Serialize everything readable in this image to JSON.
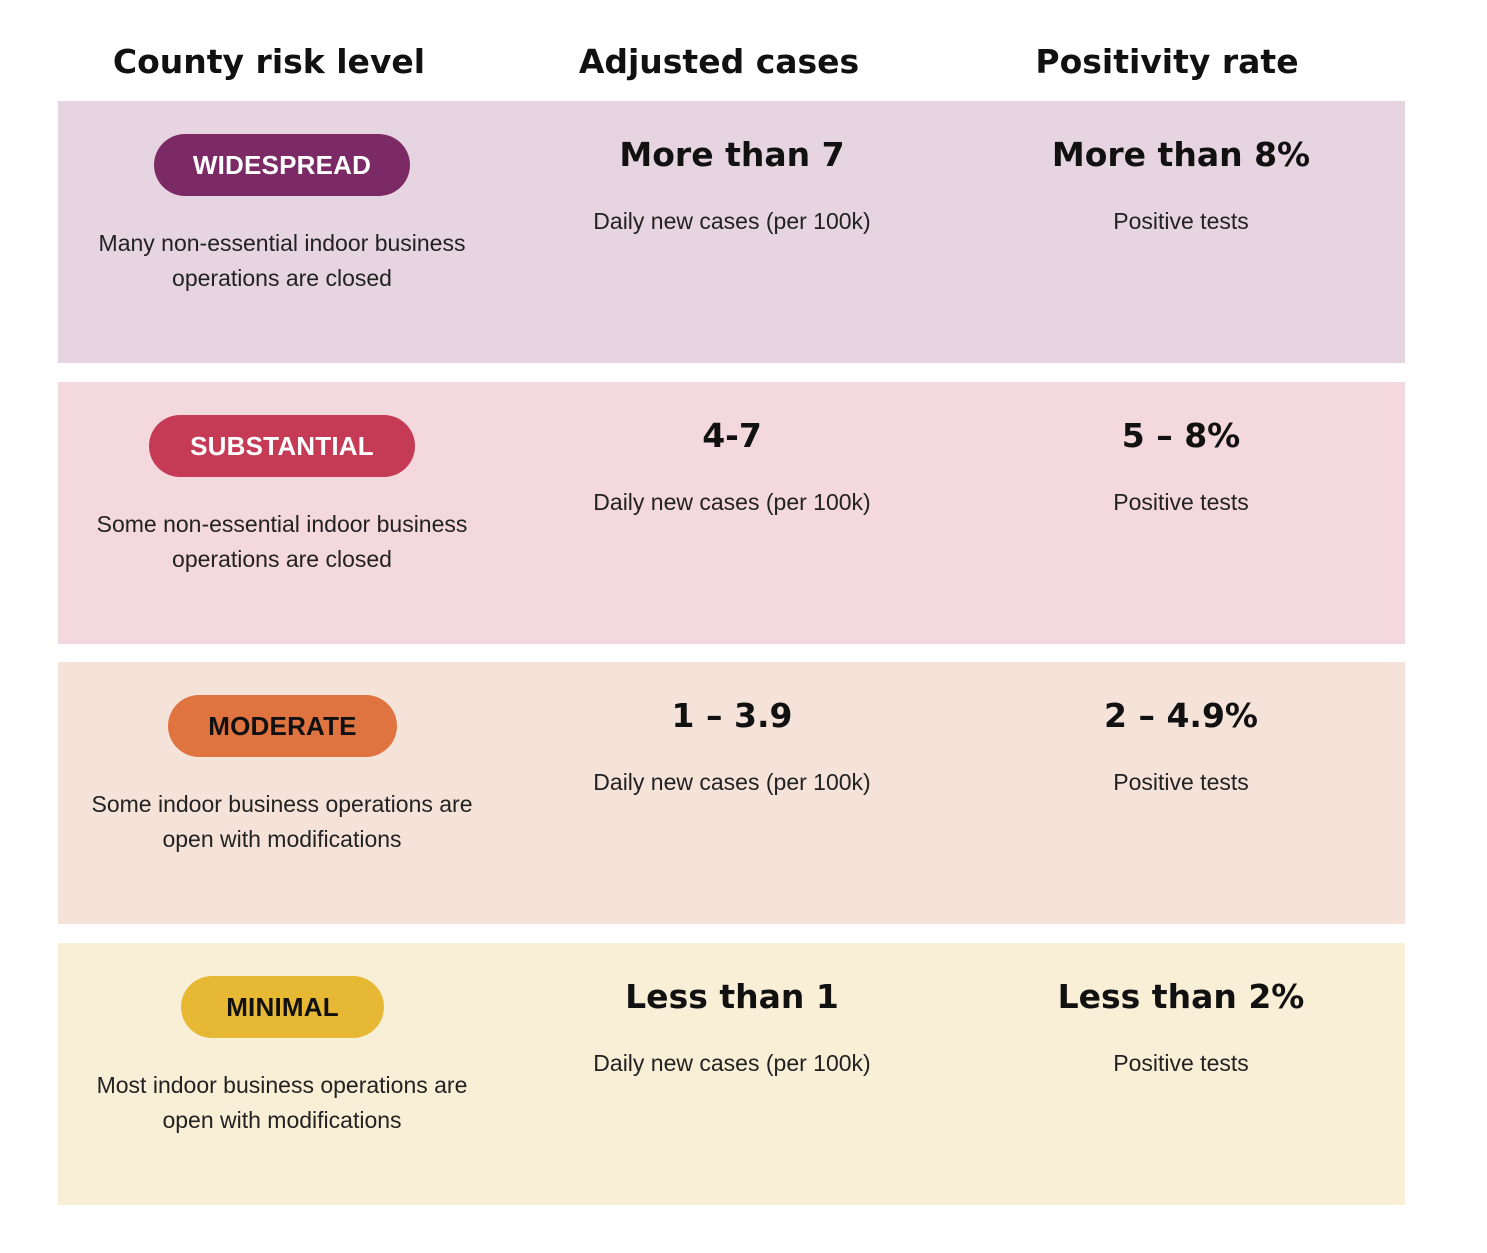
{
  "header": {
    "col1": "County risk level",
    "col2": "Adjusted cases",
    "col3": "Positivity rate"
  },
  "rows": [
    {
      "badge": "WIDESPREAD",
      "badge_color": "#7b2a66",
      "badge_text_color": "#ffffff",
      "row_bg": "#e6d4e0",
      "description_line1": "Many non-essential indoor business",
      "description_line2": "operations are closed",
      "cases": "More than 7",
      "cases_label": "Daily new cases (per 100k)",
      "positivity": "More than 8%",
      "positivity_label": "Positive tests"
    },
    {
      "badge": "SUBSTANTIAL",
      "badge_color": "#c53a55",
      "badge_text_color": "#ffffff",
      "row_bg": "#f3d8de",
      "description_line1": "Some non-essential indoor business",
      "description_line2": "operations are closed",
      "cases": "4-7",
      "cases_label": "Daily new cases (per 100k)",
      "positivity": "5 – 8%",
      "positivity_label": "Positive tests"
    },
    {
      "badge": "MODERATE",
      "badge_color": "#df7441",
      "badge_text_color": "#111111",
      "row_bg": "#f5e3da",
      "description_line1": "Some indoor business operations are",
      "description_line2": "open with modifications",
      "cases": "1 – 3.9",
      "cases_label": "Daily new cases (per 100k)",
      "positivity": "2 – 4.9%",
      "positivity_label": "Positive tests"
    },
    {
      "badge": "MINIMAL",
      "badge_color": "#e6b834",
      "badge_text_color": "#111111",
      "row_bg": "#f9efd7",
      "description_line1": "Most indoor business operations are",
      "description_line2": "open with modifications",
      "cases": "Less than 1",
      "cases_label": "Daily new cases (per 100k)",
      "positivity": "Less than 2%",
      "positivity_label": "Positive tests"
    }
  ]
}
